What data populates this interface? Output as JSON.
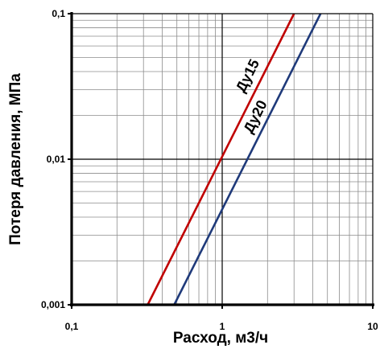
{
  "chart_data": {
    "type": "line",
    "xscale": "log",
    "yscale": "log",
    "xlim": [
      0.1,
      10
    ],
    "ylim": [
      0.001,
      0.1
    ],
    "grid": true,
    "xlabel": "Расход, м3/ч",
    "ylabel": "Потеря давления, МПа",
    "x_tick_labels": [
      "0,1",
      "1",
      "10"
    ],
    "y_tick_labels": [
      "0,001",
      "0,01",
      "0,1"
    ],
    "series": [
      {
        "name": "Ду15",
        "color": "#c00000",
        "x": [
          0.32,
          3.0
        ],
        "y": [
          0.001,
          0.1
        ]
      },
      {
        "name": "Ду20",
        "color": "#1f3a7a",
        "x": [
          0.48,
          4.5
        ],
        "y": [
          0.001,
          0.1
        ]
      }
    ]
  }
}
